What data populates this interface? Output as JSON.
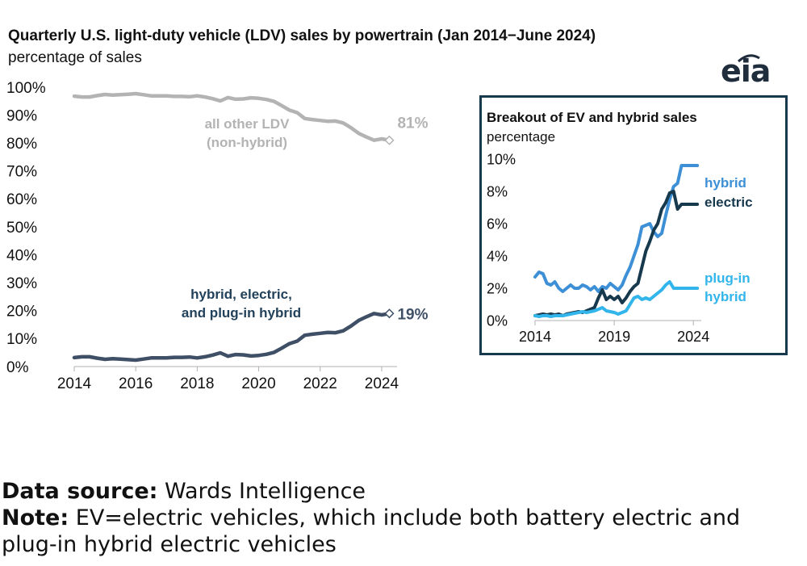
{
  "title": "Quarterly U.S. light-duty vehicle (LDV) sales by powertrain (Jan 2014−June 2024)",
  "subtitle": "percentage of sales",
  "logo_text": "eia",
  "colors": {
    "other_ldv": "#b3b3b3",
    "hybrid_electric_plugin": "#3f4f66",
    "hybrid": "#3d8fd6",
    "electric": "#17394e",
    "plugin_hybrid": "#32b5ea",
    "axis_text": "#111111"
  },
  "chart_data": [
    {
      "type": "line",
      "title": "Quarterly U.S. light-duty vehicle (LDV) sales by powertrain (Jan 2014−June 2024)",
      "ylabel": "percentage of sales",
      "xlim": [
        2014,
        2024.5
      ],
      "ylim": [
        0,
        100
      ],
      "xticks": [
        2014,
        2016,
        2018,
        2020,
        2022,
        2024
      ],
      "xtick_labels": [
        "2014",
        "2016",
        "2018",
        "2020",
        "2022",
        "2024"
      ],
      "yticks": [
        0,
        10,
        20,
        30,
        40,
        50,
        60,
        70,
        80,
        90,
        100
      ],
      "ytick_labels": [
        "0%",
        "10%",
        "20%",
        "30%",
        "40%",
        "50%",
        "60%",
        "70%",
        "80%",
        "90%",
        "100%"
      ],
      "x": [
        2014.0,
        2014.25,
        2014.5,
        2014.75,
        2015.0,
        2015.25,
        2015.5,
        2015.75,
        2016.0,
        2016.25,
        2016.5,
        2016.75,
        2017.0,
        2017.25,
        2017.5,
        2017.75,
        2018.0,
        2018.25,
        2018.5,
        2018.75,
        2019.0,
        2019.25,
        2019.5,
        2019.75,
        2020.0,
        2020.25,
        2020.5,
        2020.75,
        2021.0,
        2021.25,
        2021.5,
        2021.75,
        2022.0,
        2022.25,
        2022.5,
        2022.75,
        2023.0,
        2023.25,
        2023.5,
        2023.75,
        2024.0,
        2024.25
      ],
      "series": [
        {
          "name": "all other LDV (non-hybrid)",
          "label_lines": [
            "all other LDV",
            "(non-hybrid)"
          ],
          "end_label": "81%",
          "values": [
            96.8,
            96.5,
            96.5,
            97.0,
            97.4,
            97.2,
            97.3,
            97.5,
            97.7,
            97.3,
            96.9,
            96.9,
            96.9,
            96.7,
            96.7,
            96.6,
            96.9,
            96.5,
            95.9,
            95.1,
            96.3,
            95.7,
            95.8,
            96.2,
            96.0,
            95.6,
            94.9,
            93.4,
            91.8,
            90.9,
            88.8,
            88.4,
            88.1,
            87.8,
            87.9,
            87.2,
            85.5,
            83.5,
            82.2,
            81.0,
            81.5,
            81.0
          ]
        },
        {
          "name": "hybrid, electric, and plug-in hybrid",
          "label_lines": [
            "hybrid, electric,",
            "and plug-in hybrid"
          ],
          "end_label": "19%",
          "values": [
            3.2,
            3.5,
            3.5,
            3.0,
            2.6,
            2.8,
            2.7,
            2.5,
            2.3,
            2.7,
            3.1,
            3.1,
            3.1,
            3.3,
            3.3,
            3.4,
            3.1,
            3.5,
            4.1,
            4.9,
            3.7,
            4.3,
            4.2,
            3.8,
            4.0,
            4.4,
            5.1,
            6.6,
            8.2,
            9.1,
            11.2,
            11.6,
            11.9,
            12.2,
            12.1,
            12.8,
            14.5,
            16.5,
            17.8,
            19.0,
            18.5,
            19.0
          ]
        }
      ]
    },
    {
      "type": "line",
      "title": "Breakout of EV and hybrid sales",
      "ylabel": "percentage",
      "xlim": [
        2014,
        2024.5
      ],
      "ylim": [
        0,
        10
      ],
      "xticks": [
        2014,
        2019,
        2024
      ],
      "xtick_labels": [
        "2014",
        "2019",
        "2024"
      ],
      "yticks": [
        0,
        2,
        4,
        6,
        8,
        10
      ],
      "ytick_labels": [
        "0%",
        "2%",
        "4%",
        "6%",
        "8%",
        "10%"
      ],
      "x": [
        2014.0,
        2014.25,
        2014.5,
        2014.75,
        2015.0,
        2015.25,
        2015.5,
        2015.75,
        2016.0,
        2016.25,
        2016.5,
        2016.75,
        2017.0,
        2017.25,
        2017.5,
        2017.75,
        2018.0,
        2018.25,
        2018.5,
        2018.75,
        2019.0,
        2019.25,
        2019.5,
        2019.75,
        2020.0,
        2020.25,
        2020.5,
        2020.75,
        2021.0,
        2021.25,
        2021.5,
        2021.75,
        2022.0,
        2022.25,
        2022.5,
        2022.75,
        2023.0,
        2023.25,
        2023.5,
        2023.75,
        2024.0,
        2024.25
      ],
      "series": [
        {
          "name": "hybrid",
          "label_lines": [
            "hybrid"
          ],
          "values": [
            2.7,
            3.0,
            2.9,
            2.3,
            2.2,
            2.4,
            2.0,
            1.8,
            2.0,
            2.2,
            2.0,
            2.0,
            2.2,
            2.1,
            1.9,
            2.1,
            1.8,
            2.1,
            2.0,
            2.3,
            2.1,
            1.9,
            2.2,
            2.8,
            3.3,
            4.0,
            4.7,
            5.8,
            5.9,
            6.0,
            5.5,
            5.2,
            5.4,
            6.5,
            7.5,
            8.3,
            8.5,
            9.6,
            9.6,
            9.6,
            9.6,
            9.6
          ]
        },
        {
          "name": "electric",
          "label_lines": [
            "electric"
          ],
          "values": [
            0.3,
            0.35,
            0.4,
            0.35,
            0.4,
            0.35,
            0.4,
            0.3,
            0.4,
            0.45,
            0.5,
            0.55,
            0.5,
            0.6,
            0.7,
            0.8,
            1.4,
            1.9,
            1.3,
            1.5,
            1.3,
            1.5,
            1.1,
            1.4,
            1.8,
            2.1,
            2.3,
            3.3,
            4.3,
            4.9,
            5.6,
            6.0,
            6.9,
            7.3,
            7.9,
            8.0,
            6.9,
            7.2,
            7.2,
            7.2,
            7.2,
            7.2
          ]
        },
        {
          "name": "plug-in hybrid",
          "label_lines": [
            "plug-in",
            "hybrid"
          ],
          "values": [
            0.3,
            0.25,
            0.3,
            0.3,
            0.25,
            0.3,
            0.3,
            0.3,
            0.35,
            0.4,
            0.45,
            0.5,
            0.55,
            0.5,
            0.55,
            0.6,
            0.7,
            0.8,
            0.6,
            0.55,
            0.5,
            0.4,
            0.5,
            0.6,
            1.0,
            1.4,
            1.5,
            1.3,
            1.4,
            1.3,
            1.5,
            1.7,
            1.9,
            2.2,
            2.4,
            2.0,
            2.0,
            2.0,
            2.0,
            2.0,
            2.0,
            2.0
          ]
        }
      ]
    }
  ],
  "footer": {
    "source_label": "Data source:",
    "source_text": " Wards Intelligence",
    "note_label": "Note:",
    "note_text": " EV=electric vehicles, which include both battery electric and plug-in hybrid electric vehicles"
  }
}
